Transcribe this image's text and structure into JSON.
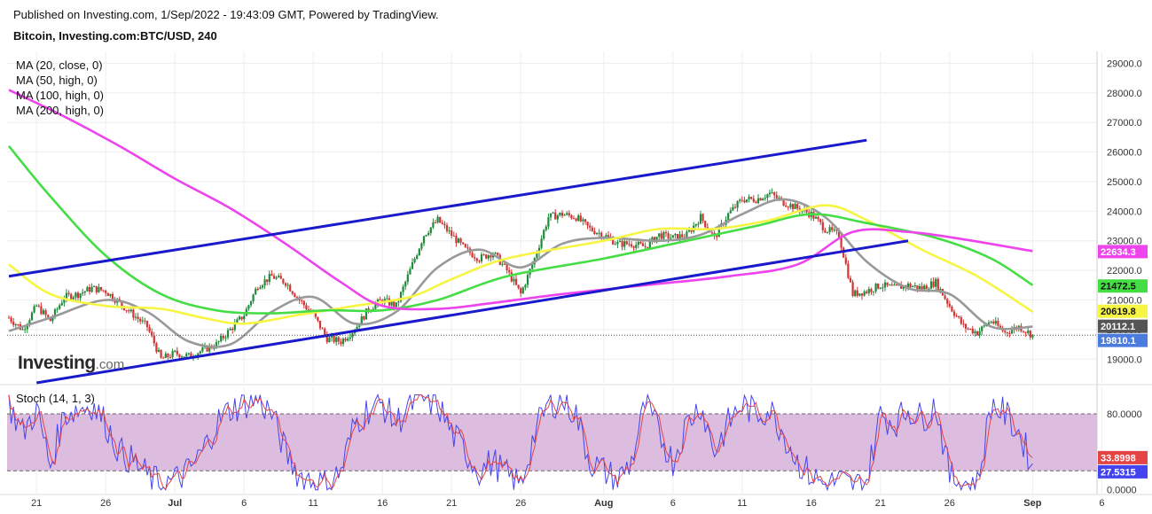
{
  "header": {
    "published": "Published on Investing.com, 1/Sep/2022 - 19:43:09 GMT, Powered by TradingView.",
    "symbol": "Bitcoin, Investing.com:BTC/USD, 240"
  },
  "ma_legend": [
    "MA (20, close, 0)",
    "MA (50, high, 0)",
    "MA (100, high, 0)",
    "MA (200, high, 0)"
  ],
  "stoch_legend": "Stoch (14, 1, 3)",
  "logo": {
    "brand": "Investing",
    "suffix": ".com"
  },
  "colors": {
    "ma20": "#999999",
    "ma50": "#f5f542",
    "ma100": "#44dd44",
    "ma200": "#ee44ee",
    "channel": "#1a1acc",
    "up": "#1f8a3a",
    "down": "#d33333",
    "stoch_k": "#4444ee",
    "stoch_d": "#e44444",
    "stoch_band": "#d9b6dc",
    "last_price": "#4a7bde",
    "price_20112": "#555555"
  },
  "chart_data": [
    {
      "type": "candlestick",
      "x_tick_labels": [
        "21",
        "26",
        "Jul",
        "6",
        "11",
        "16",
        "21",
        "26",
        "Aug",
        "6",
        "11",
        "16",
        "21",
        "26",
        "Sep",
        "6"
      ],
      "y_tick_labels": [
        "19000.0",
        "20000.0",
        "21000.0",
        "22000.0",
        "23000.0",
        "24000.0",
        "25000.0",
        "26000.0",
        "27000.0",
        "28000.0",
        "29000.0"
      ],
      "ylim": [
        18200,
        29400
      ],
      "price_labels": [
        {
          "text": "22634.3",
          "value": 22634.3,
          "color": "#ee44ee"
        },
        {
          "text": "21472.5",
          "value": 21472.5,
          "color": "#44dd44"
        },
        {
          "text": "20619.8",
          "value": 20619.8,
          "color": "#f5f542"
        },
        {
          "text": "20112.1",
          "value": 20112.1,
          "color": "#555555"
        },
        {
          "text": "19810.1",
          "value": 19810.1,
          "color": "#4a7bde"
        }
      ],
      "close_points": [
        [
          "Jun 19",
          20400
        ],
        [
          "Jun 20",
          20000
        ],
        [
          "Jun 21",
          20800
        ],
        [
          "Jun 22",
          20300
        ],
        [
          "Jun 23",
          21100
        ],
        [
          "Jun 24",
          21200
        ],
        [
          "Jun 25",
          21400
        ],
        [
          "Jun 26",
          21300
        ],
        [
          "Jun 27",
          20900
        ],
        [
          "Jun 28",
          20500
        ],
        [
          "Jun 29",
          20100
        ],
        [
          "Jun 30",
          19000
        ],
        [
          "Jul 1",
          19200
        ],
        [
          "Jul 2",
          19100
        ],
        [
          "Jul 3",
          19300
        ],
        [
          "Jul 4",
          19500
        ],
        [
          "Jul 5",
          20000
        ],
        [
          "Jul 6",
          20500
        ],
        [
          "Jul 7",
          21500
        ],
        [
          "Jul 8",
          21800
        ],
        [
          "Jul 9",
          21600
        ],
        [
          "Jul 10",
          21000
        ],
        [
          "Jul 11",
          20500
        ],
        [
          "Jul 12",
          19700
        ],
        [
          "Jul 13",
          19600
        ],
        [
          "Jul 14",
          20000
        ],
        [
          "Jul 15",
          20700
        ],
        [
          "Jul 16",
          21000
        ],
        [
          "Jul 17",
          20800
        ],
        [
          "Jul 18",
          22000
        ],
        [
          "Jul 19",
          23200
        ],
        [
          "Jul 20",
          23700
        ],
        [
          "Jul 21",
          23200
        ],
        [
          "Jul 22",
          22700
        ],
        [
          "Jul 23",
          22400
        ],
        [
          "Jul 24",
          22600
        ],
        [
          "Jul 25",
          22000
        ],
        [
          "Jul 26",
          21200
        ],
        [
          "Jul 27",
          22400
        ],
        [
          "Jul 28",
          23800
        ],
        [
          "Jul 29",
          23900
        ],
        [
          "Jul 30",
          23800
        ],
        [
          "Jul 31",
          23400
        ],
        [
          "Aug 1",
          23200
        ],
        [
          "Aug 2",
          22900
        ],
        [
          "Aug 3",
          22900
        ],
        [
          "Aug 4",
          22800
        ],
        [
          "Aug 5",
          23200
        ],
        [
          "Aug 6",
          23100
        ],
        [
          "Aug 7",
          23200
        ],
        [
          "Aug 8",
          23800
        ],
        [
          "Aug 9",
          23100
        ],
        [
          "Aug 10",
          23900
        ],
        [
          "Aug 11",
          24400
        ],
        [
          "Aug 12",
          24400
        ],
        [
          "Aug 13",
          24600
        ],
        [
          "Aug 14",
          24300
        ],
        [
          "Aug 15",
          24100
        ],
        [
          "Aug 16",
          23900
        ],
        [
          "Aug 17",
          23400
        ],
        [
          "Aug 18",
          23200
        ],
        [
          "Aug 19",
          21200
        ],
        [
          "Aug 20",
          21300
        ],
        [
          "Aug 21",
          21500
        ],
        [
          "Aug 22",
          21400
        ],
        [
          "Aug 23",
          21500
        ],
        [
          "Aug 24",
          21400
        ],
        [
          "Aug 25",
          21600
        ],
        [
          "Aug 26",
          20800
        ],
        [
          "Aug 27",
          20100
        ],
        [
          "Aug 28",
          19900
        ],
        [
          "Aug 29",
          20300
        ],
        [
          "Aug 30",
          19900
        ],
        [
          "Aug 31",
          20100
        ],
        [
          "Sep 1",
          19810
        ]
      ],
      "ma_series": [
        {
          "name": "MA (20, close, 0)",
          "color": "#999999",
          "points": [
            [
              "Jun 19",
              19950
            ],
            [
              "Jun 22",
              20400
            ],
            [
              "Jun 26",
              21000
            ],
            [
              "Jun 29",
              20600
            ],
            [
              "Jul 2",
              19600
            ],
            [
              "Jul 5",
              19500
            ],
            [
              "Jul 8",
              20600
            ],
            [
              "Jul 11",
              21100
            ],
            [
              "Jul 14",
              20200
            ],
            [
              "Jul 17",
              20600
            ],
            [
              "Jul 20",
              22100
            ],
            [
              "Jul 23",
              22700
            ],
            [
              "Jul 26",
              22100
            ],
            [
              "Jul 29",
              22900
            ],
            [
              "Aug 1",
              23100
            ],
            [
              "Aug 5",
              23000
            ],
            [
              "Aug 8",
              23200
            ],
            [
              "Aug 11",
              23900
            ],
            [
              "Aug 14",
              24400
            ],
            [
              "Aug 17",
              23800
            ],
            [
              "Aug 20",
              22300
            ],
            [
              "Aug 23",
              21400
            ],
            [
              "Aug 26",
              21200
            ],
            [
              "Aug 29",
              20100
            ],
            [
              "Sep 1",
              20100
            ]
          ]
        },
        {
          "name": "MA (50, high, 0)",
          "color": "#f5f542",
          "points": [
            [
              "Jun 19",
              22200
            ],
            [
              "Jun 22",
              21200
            ],
            [
              "Jun 26",
              20800
            ],
            [
              "Jun 30",
              20700
            ],
            [
              "Jul 3",
              20400
            ],
            [
              "Jul 6",
              20200
            ],
            [
              "Jul 10",
              20500
            ],
            [
              "Jul 14",
              20800
            ],
            [
              "Jul 18",
              21100
            ],
            [
              "Jul 21",
              21700
            ],
            [
              "Jul 25",
              22400
            ],
            [
              "Aug 1",
              23000
            ],
            [
              "Aug 5",
              23400
            ],
            [
              "Aug 9",
              23400
            ],
            [
              "Aug 13",
              23700
            ],
            [
              "Aug 17",
              24200
            ],
            [
              "Aug 20",
              23700
            ],
            [
              "Aug 24",
              22700
            ],
            [
              "Aug 28",
              21800
            ],
            [
              "Sep 1",
              20600
            ]
          ]
        },
        {
          "name": "MA (100, high, 0)",
          "color": "#44dd44",
          "points": [
            [
              "Jun 19",
              26200
            ],
            [
              "Jun 22",
              24500
            ],
            [
              "Jun 26",
              22500
            ],
            [
              "Jun 30",
              21200
            ],
            [
              "Jul 4",
              20650
            ],
            [
              "Jul 8",
              20550
            ],
            [
              "Jul 12",
              20650
            ],
            [
              "Jul 16",
              20650
            ],
            [
              "Jul 20",
              21000
            ],
            [
              "Jul 25",
              21800
            ],
            [
              "Aug 1",
              22400
            ],
            [
              "Aug 7",
              23000
            ],
            [
              "Aug 12",
              23500
            ],
            [
              "Aug 16",
              23900
            ],
            [
              "Aug 20",
              23600
            ],
            [
              "Aug 25",
              23100
            ],
            [
              "Aug 29",
              22400
            ],
            [
              "Sep 1",
              21500
            ]
          ]
        },
        {
          "name": "MA (200, high, 0)",
          "color": "#ee44ee",
          "points": [
            [
              "Jun 19",
              28100
            ],
            [
              "Jun 23",
              27200
            ],
            [
              "Jun 27",
              26200
            ],
            [
              "Jul 1",
              25100
            ],
            [
              "Jul 5",
              24100
            ],
            [
              "Jul 9",
              22900
            ],
            [
              "Jul 13",
              21600
            ],
            [
              "Jul 16",
              20800
            ],
            [
              "Jul 20",
              20700
            ],
            [
              "Jul 24",
              20900
            ],
            [
              "Jul 29",
              21200
            ],
            [
              "Aug 4",
              21500
            ],
            [
              "Aug 10",
              21800
            ],
            [
              "Aug 15",
              22200
            ],
            [
              "Aug 19",
              23300
            ],
            [
              "Aug 23",
              23300
            ],
            [
              "Aug 27",
              23050
            ],
            [
              "Sep 1",
              22650
            ]
          ]
        }
      ],
      "trend_lines": [
        {
          "name": "channel-upper",
          "from": [
            "Jun 19",
            21800
          ],
          "to": [
            "Aug 20",
            26400
          ]
        },
        {
          "name": "channel-lower",
          "from": [
            "Jun 21",
            18200
          ],
          "to": [
            "Aug 23",
            23000
          ]
        }
      ],
      "last_price": 19810.1
    },
    {
      "type": "line",
      "indicator": "Stoch (14, 1, 3)",
      "y_tick_labels": [
        "80.0000",
        "0.0000"
      ],
      "band": [
        20,
        80
      ],
      "ylim": [
        -4,
        108
      ],
      "value_labels": [
        {
          "text": "33.8998",
          "value": 33.8998,
          "color": "#e44444"
        },
        {
          "text": "27.5315",
          "value": 27.5315,
          "color": "#4444ee"
        }
      ],
      "stoch_points": [
        [
          "Jun 19",
          90
        ],
        [
          "Jun 20",
          60
        ],
        [
          "Jun 21",
          85
        ],
        [
          "Jun 22",
          25
        ],
        [
          "Jun 23",
          80
        ],
        [
          "Jun 24",
          85
        ],
        [
          "Jun 25",
          90
        ],
        [
          "Jun 26",
          70
        ],
        [
          "Jun 27",
          40
        ],
        [
          "Jun 28",
          30
        ],
        [
          "Jun 29",
          15
        ],
        [
          "Jun 30",
          5
        ],
        [
          "Jul 1",
          10
        ],
        [
          "Jul 2",
          20
        ],
        [
          "Jul 3",
          40
        ],
        [
          "Jul 4",
          70
        ],
        [
          "Jul 5",
          85
        ],
        [
          "Jul 6",
          90
        ],
        [
          "Jul 7",
          95
        ],
        [
          "Jul 8",
          80
        ],
        [
          "Jul 9",
          40
        ],
        [
          "Jul 10",
          15
        ],
        [
          "Jul 11",
          10
        ],
        [
          "Jul 12",
          5
        ],
        [
          "Jul 13",
          20
        ],
        [
          "Jul 14",
          70
        ],
        [
          "Jul 15",
          85
        ],
        [
          "Jul 16",
          90
        ],
        [
          "Jul 17",
          70
        ],
        [
          "Jul 18",
          90
        ],
        [
          "Jul 19",
          95
        ],
        [
          "Jul 20",
          90
        ],
        [
          "Jul 21",
          60
        ],
        [
          "Jul 22",
          40
        ],
        [
          "Jul 23",
          20
        ],
        [
          "Jul 24",
          30
        ],
        [
          "Jul 25",
          15
        ],
        [
          "Jul 26",
          5
        ],
        [
          "Jul 27",
          60
        ],
        [
          "Jul 28",
          90
        ],
        [
          "Jul 29",
          95
        ],
        [
          "Jul 30",
          80
        ],
        [
          "Jul 31",
          30
        ],
        [
          "Aug 1",
          20
        ],
        [
          "Aug 2",
          10
        ],
        [
          "Aug 3",
          30
        ],
        [
          "Aug 4",
          90
        ],
        [
          "Aug 5",
          60
        ],
        [
          "Aug 6",
          30
        ],
        [
          "Aug 7",
          70
        ],
        [
          "Aug 8",
          90
        ],
        [
          "Aug 9",
          40
        ],
        [
          "Aug 10",
          70
        ],
        [
          "Aug 11",
          90
        ],
        [
          "Aug 12",
          80
        ],
        [
          "Aug 13",
          85
        ],
        [
          "Aug 14",
          60
        ],
        [
          "Aug 15",
          30
        ],
        [
          "Aug 16",
          15
        ],
        [
          "Aug 17",
          5
        ],
        [
          "Aug 18",
          10
        ],
        [
          "Aug 19",
          3
        ],
        [
          "Aug 20",
          10
        ],
        [
          "Aug 21",
          80
        ],
        [
          "Aug 22",
          70
        ],
        [
          "Aug 23",
          85
        ],
        [
          "Aug 24",
          75
        ],
        [
          "Aug 25",
          90
        ],
        [
          "Aug 26",
          15
        ],
        [
          "Aug 27",
          8
        ],
        [
          "Aug 28",
          5
        ],
        [
          "Aug 29",
          90
        ],
        [
          "Aug 30",
          80
        ],
        [
          "Aug 31",
          60
        ],
        [
          "Sep 1",
          27.5
        ]
      ]
    }
  ]
}
